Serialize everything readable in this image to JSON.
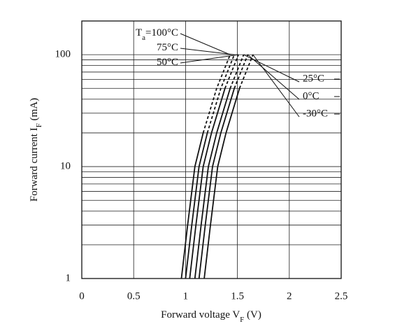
{
  "chart_data": {
    "type": "line",
    "log_y": true,
    "x_label": {
      "text": "Forward voltage V",
      "subscript": "F",
      "unit": " (V)"
    },
    "y_label": {
      "text": "Forward current I",
      "subscript": "F",
      "unit": " (mA)"
    },
    "temperature_label": {
      "symbol": "T",
      "subscript": "a",
      "equals": "="
    },
    "xlim": [
      0,
      2.5
    ],
    "xticks": [
      0,
      0.5,
      1,
      1.5,
      2,
      2.5
    ],
    "ylim": [
      1,
      200
    ],
    "yticks": [
      1,
      10,
      100
    ],
    "minor_yticks": [
      2,
      3,
      4,
      5,
      6,
      7,
      8,
      9,
      20,
      30,
      40,
      50,
      60,
      70,
      80,
      90
    ],
    "grid": true,
    "color": "#111111",
    "series": [
      {
        "name": "100°C",
        "x": [
          0.96,
          1.02,
          1.09,
          1.17,
          1.3,
          1.43
        ],
        "values": [
          1,
          3,
          10,
          20,
          50,
          100
        ],
        "dash_from": 3
      },
      {
        "name": "75°C",
        "x": [
          1.0,
          1.06,
          1.13,
          1.21,
          1.34,
          1.47
        ],
        "values": [
          1,
          3,
          10,
          20,
          50,
          100
        ],
        "dash_from": 3
      },
      {
        "name": "50°C",
        "x": [
          1.04,
          1.1,
          1.17,
          1.25,
          1.38,
          1.51
        ],
        "values": [
          1,
          3,
          10,
          20,
          50,
          100
        ],
        "dash_from": 4
      },
      {
        "name": "25°C",
        "x": [
          1.09,
          1.15,
          1.22,
          1.3,
          1.43,
          1.56
        ],
        "values": [
          1,
          3,
          10,
          20,
          50,
          100
        ],
        "dash_from": 4
      },
      {
        "name": "0°C",
        "x": [
          1.13,
          1.19,
          1.26,
          1.34,
          1.47,
          1.6
        ],
        "values": [
          1,
          3,
          10,
          20,
          50,
          100
        ],
        "dash_from": 4
      },
      {
        "name": "-30°C",
        "x": [
          1.18,
          1.24,
          1.31,
          1.39,
          1.52,
          1.65
        ],
        "values": [
          1,
          3,
          10,
          20,
          50,
          100
        ],
        "dash_from": 4
      }
    ]
  }
}
